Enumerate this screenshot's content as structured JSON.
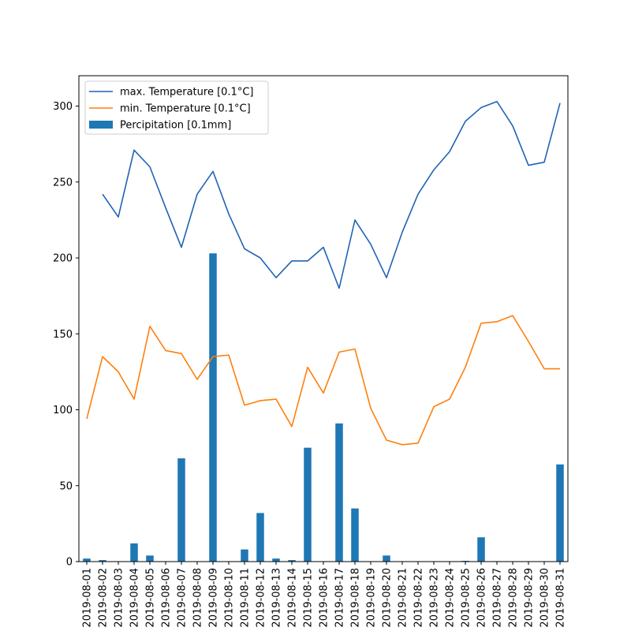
{
  "chart_data": {
    "type": "bar+line",
    "categories": [
      "2019-08-01",
      "2019-08-02",
      "2019-08-03",
      "2019-08-04",
      "2019-08-05",
      "2019-08-06",
      "2019-08-07",
      "2019-08-08",
      "2019-08-09",
      "2019-08-10",
      "2019-08-11",
      "2019-08-12",
      "2019-08-13",
      "2019-08-14",
      "2019-08-15",
      "2019-08-16",
      "2019-08-17",
      "2019-08-18",
      "2019-08-19",
      "2019-08-20",
      "2019-08-21",
      "2019-08-22",
      "2019-08-23",
      "2019-08-24",
      "2019-08-25",
      "2019-08-26",
      "2019-08-27",
      "2019-08-28",
      "2019-08-29",
      "2019-08-30",
      "2019-08-31"
    ],
    "ylim": [
      0,
      320
    ],
    "yticks": [
      0,
      50,
      100,
      150,
      200,
      250,
      300
    ],
    "grid": false,
    "legend_position": "upper-left",
    "series": [
      {
        "name": "max. Temperature [0.1°C]",
        "kind": "line",
        "color": "#1f63b4",
        "values": [
          null,
          242,
          227,
          271,
          260,
          233,
          207,
          242,
          257,
          229,
          206,
          200,
          187,
          198,
          198,
          207,
          180,
          225,
          209,
          187,
          217,
          242,
          258,
          270,
          290,
          299,
          303,
          287,
          261,
          263,
          302
        ]
      },
      {
        "name": "min. Temperature [0.1°C]",
        "kind": "line",
        "color": "#ff7f0e",
        "values": [
          94,
          135,
          125,
          107,
          155,
          139,
          137,
          120,
          135,
          136,
          103,
          106,
          107,
          89,
          128,
          111,
          138,
          140,
          101,
          80,
          77,
          78,
          102,
          107,
          128,
          157,
          158,
          162,
          145,
          127,
          127
        ]
      },
      {
        "name": "Percipitation [0.1mm]",
        "kind": "bar",
        "color": "#1f77b4",
        "values": [
          2,
          1,
          0,
          12,
          4,
          0,
          68,
          0,
          203,
          0,
          8,
          32,
          2,
          1,
          75,
          0,
          91,
          35,
          0,
          4,
          0,
          0,
          0,
          0,
          0.5,
          16,
          0.3,
          0,
          0,
          0,
          64
        ]
      }
    ]
  }
}
